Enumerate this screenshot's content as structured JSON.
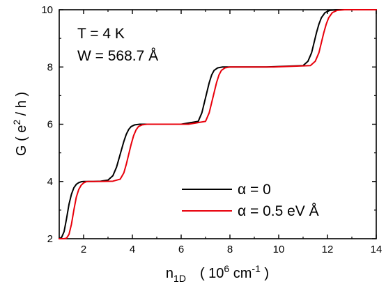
{
  "chart_data": {
    "type": "line",
    "title": "",
    "xlabel": {
      "base": "n",
      "sub": "1D",
      "unit_pre": "( 10",
      "unit_exp": "6",
      "unit_mid": " cm",
      "unit_exp2": "-1",
      "unit_post": " )"
    },
    "ylabel": {
      "pre": "G    ( e",
      "exp": "2",
      "post": " / h )"
    },
    "xlim": [
      1,
      14
    ],
    "ylim": [
      2,
      10
    ],
    "xticks": [
      2,
      4,
      6,
      8,
      10,
      12,
      14
    ],
    "yticks": [
      2,
      4,
      6,
      8,
      10
    ],
    "xtick_labels": [
      "2",
      "4",
      "6",
      "8",
      "10",
      "12",
      "14"
    ],
    "ytick_labels": [
      "2",
      "4",
      "6",
      "8",
      "10"
    ],
    "grid": false,
    "legend_position": "bottom-right",
    "annotations": [
      "T = 4 K",
      "W = 568.7  Å"
    ],
    "series": [
      {
        "name": "α = 0",
        "color": "#000000",
        "x": [
          1.0,
          1.1,
          1.2,
          1.3,
          1.4,
          1.5,
          1.6,
          1.7,
          1.8,
          1.9,
          2.0,
          2.2,
          2.4,
          2.7,
          3.0,
          3.2,
          3.35,
          3.45,
          3.55,
          3.65,
          3.75,
          3.85,
          3.95,
          4.1,
          4.3,
          4.6,
          5.0,
          6.0,
          6.7,
          6.85,
          6.95,
          7.05,
          7.15,
          7.25,
          7.35,
          7.5,
          7.7,
          8.0,
          8.5,
          9.5,
          11.0,
          11.2,
          11.35,
          11.45,
          11.55,
          11.65,
          11.75,
          11.9,
          12.1,
          12.4,
          12.8,
          14.0
        ],
        "y": [
          2.0,
          2.05,
          2.25,
          2.7,
          3.2,
          3.55,
          3.78,
          3.9,
          3.96,
          3.99,
          4.0,
          4.0,
          4.0,
          4.01,
          4.05,
          4.2,
          4.5,
          4.8,
          5.1,
          5.4,
          5.65,
          5.82,
          5.92,
          5.98,
          6.0,
          6.0,
          6.0,
          6.0,
          6.1,
          6.4,
          6.75,
          7.1,
          7.45,
          7.72,
          7.88,
          7.97,
          8.0,
          8.0,
          8.0,
          8.0,
          8.05,
          8.2,
          8.5,
          8.85,
          9.2,
          9.5,
          9.72,
          9.9,
          9.98,
          10.0,
          10.0,
          10.0
        ]
      },
      {
        "name": "α = 0.5 eV  Å",
        "color": "#e8000b",
        "x": [
          1.0,
          1.2,
          1.3,
          1.4,
          1.5,
          1.6,
          1.7,
          1.8,
          1.9,
          2.0,
          2.1,
          2.2,
          2.4,
          2.7,
          3.2,
          3.5,
          3.65,
          3.75,
          3.85,
          3.95,
          4.05,
          4.15,
          4.25,
          4.4,
          4.6,
          4.9,
          5.3,
          6.3,
          7.0,
          7.15,
          7.25,
          7.35,
          7.45,
          7.55,
          7.65,
          7.8,
          8.0,
          8.3,
          8.8,
          9.8,
          11.3,
          11.5,
          11.65,
          11.75,
          11.85,
          11.95,
          12.05,
          12.2,
          12.4,
          12.7,
          13.1,
          14.0
        ],
        "y": [
          2.0,
          2.0,
          2.02,
          2.15,
          2.5,
          3.0,
          3.45,
          3.72,
          3.87,
          3.95,
          3.99,
          4.0,
          4.0,
          4.0,
          4.01,
          4.08,
          4.3,
          4.6,
          4.95,
          5.3,
          5.6,
          5.8,
          5.92,
          5.98,
          6.0,
          6.0,
          6.0,
          6.0,
          6.1,
          6.4,
          6.75,
          7.1,
          7.45,
          7.72,
          7.88,
          7.97,
          8.0,
          8.0,
          8.0,
          8.0,
          8.05,
          8.2,
          8.5,
          8.85,
          9.2,
          9.5,
          9.72,
          9.9,
          9.98,
          10.0,
          10.0,
          10.0
        ]
      }
    ]
  }
}
